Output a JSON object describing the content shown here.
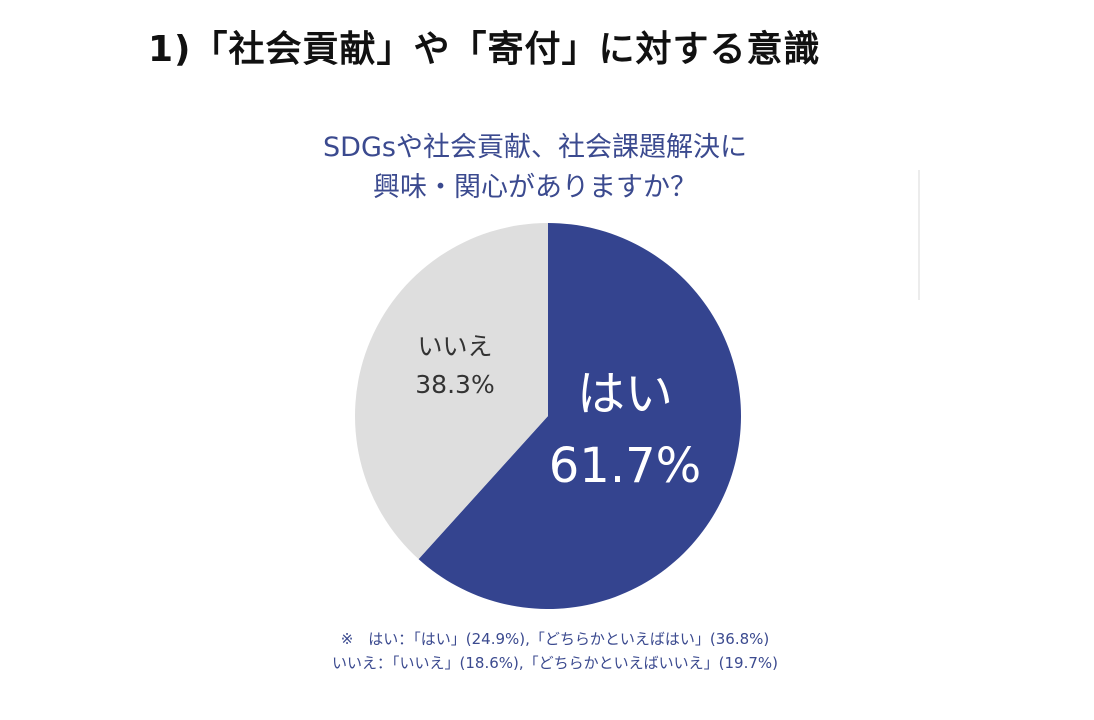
{
  "heading": "1)「社会貢献」や「寄付」に対する意識",
  "chart_data": {
    "type": "pie",
    "title_lines": [
      "SDGsや社会貢献、社会課題解決に",
      "興味・関心がありますか？"
    ],
    "slices": [
      {
        "label": "はい",
        "value": 61.7,
        "value_text": "61.7%",
        "color": "#34448f"
      },
      {
        "label": "いいえ",
        "value": 38.3,
        "value_text": "38.3%",
        "color": "#dedede"
      }
    ],
    "notes": [
      "※　はい：「はい」(24.9%),「どちらかといえばはい」(36.8%)",
      "いいえ：「いいえ」(18.6%),「どちらかといえばいいえ」(19.7%)"
    ]
  }
}
